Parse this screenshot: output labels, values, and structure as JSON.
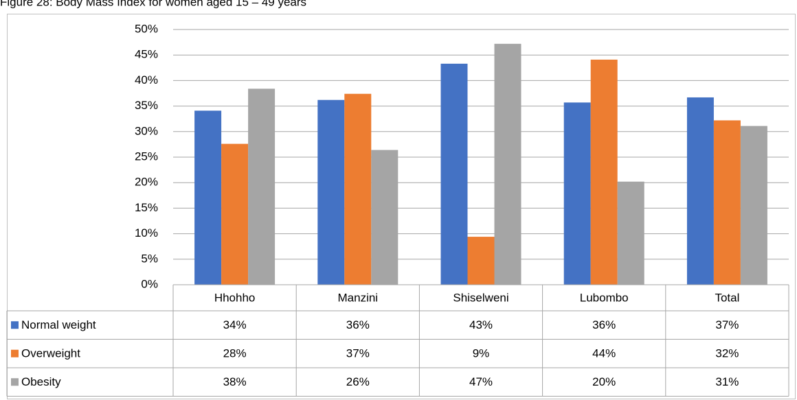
{
  "chart_data": {
    "type": "bar",
    "title": "Figure 28: Body Mass Index for women aged 15 – 49 years",
    "categories": [
      "Hhohho",
      "Manzini",
      "Shiselweni",
      "Lubombo",
      "Total"
    ],
    "series": [
      {
        "name": "Normal weight",
        "color": "#4472c4",
        "values": [
          34.1,
          36.2,
          43.3,
          35.7,
          36.7
        ],
        "value_labels": [
          "34%",
          "36%",
          "43%",
          "36%",
          "37%"
        ]
      },
      {
        "name": "Overweight",
        "color": "#ed7d31",
        "values": [
          27.6,
          37.4,
          9.4,
          44.1,
          32.2
        ],
        "value_labels": [
          "28%",
          "37%",
          "9%",
          "44%",
          "32%"
        ]
      },
      {
        "name": "Obesity",
        "color": "#a5a5a5",
        "values": [
          38.4,
          26.4,
          47.2,
          20.2,
          31.1
        ],
        "value_labels": [
          "38%",
          "26%",
          "47%",
          "20%",
          "31%"
        ]
      }
    ],
    "ylim": [
      0,
      50
    ],
    "yticks": [
      {
        "value": 0,
        "label": "0%"
      },
      {
        "value": 5,
        "label": "5%"
      },
      {
        "value": 10,
        "label": "10%"
      },
      {
        "value": 15,
        "label": "15%"
      },
      {
        "value": 20,
        "label": "20%"
      },
      {
        "value": 25,
        "label": "25%"
      },
      {
        "value": 30,
        "label": "30%"
      },
      {
        "value": 35,
        "label": "35%"
      },
      {
        "value": 40,
        "label": "40%"
      },
      {
        "value": 45,
        "label": "45%"
      },
      {
        "value": 50,
        "label": "50%"
      }
    ],
    "grid": true
  }
}
